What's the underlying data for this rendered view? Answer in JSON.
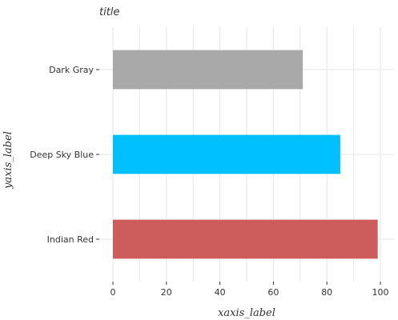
{
  "chart_data": {
    "type": "bar",
    "orientation": "horizontal",
    "title": "title",
    "xlabel": "xaxis_label",
    "ylabel": "yaxis_label",
    "categories": [
      "Indian Red",
      "Deep Sky Blue",
      "Dark Gray"
    ],
    "values": [
      99,
      85,
      71
    ],
    "colors": [
      "#cd5c5c",
      "#00bfff",
      "#a9a9a9"
    ],
    "xlim": [
      0,
      100
    ],
    "xticks": [
      0,
      20,
      40,
      60,
      80,
      100
    ],
    "grid": true,
    "legend": "none"
  }
}
